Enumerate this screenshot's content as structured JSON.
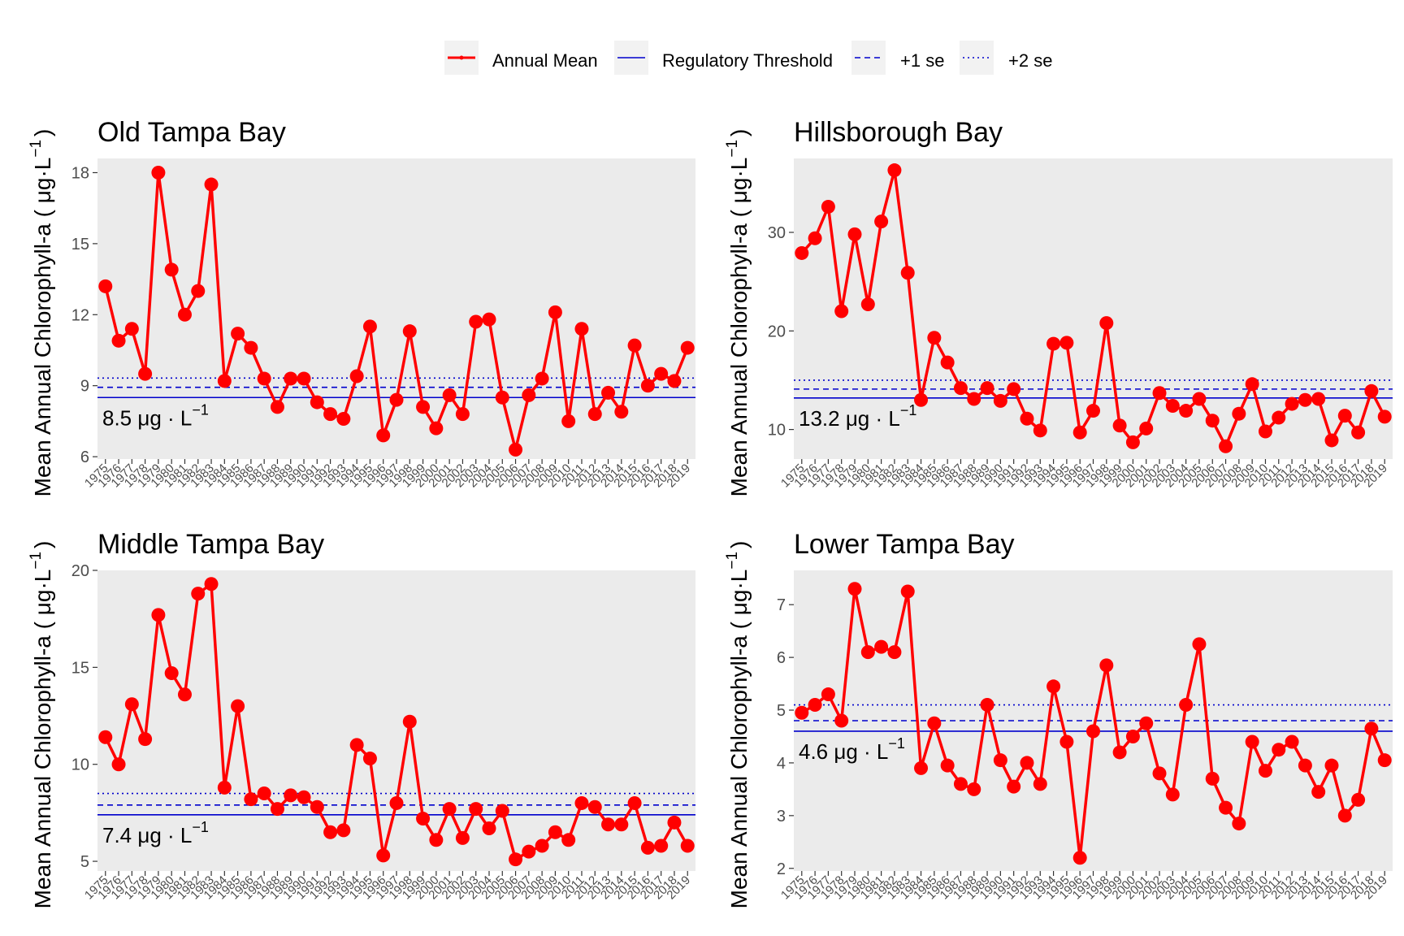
{
  "legend": {
    "annual_mean": "Annual Mean",
    "threshold": "Regulatory Threshold",
    "se1": "+1 se",
    "se2": "+2 se"
  },
  "colors": {
    "mean": "#ff0000",
    "threshold": "#0000cc",
    "panel_bg": "#ebebeb"
  },
  "chart_data": [
    {
      "type": "line",
      "title": "Old Tampa Bay",
      "ylabel": "Mean Annual Chlorophyll-a ( μg·L⁻¹ )",
      "ylabel_main": "Mean Annual Chlorophyll-a ( ",
      "ylabel_unit": "μg·L",
      "ylabel_exp": "−1",
      "ylabel_close": ")",
      "ylim": [
        5.9,
        18.6
      ],
      "yticks": [
        6,
        9,
        12,
        15,
        18
      ],
      "threshold": 8.5,
      "se1": 8.93,
      "se2": 9.32,
      "threshold_label": "8.5 μg · L",
      "threshold_label_exp": "−1",
      "x": [
        1975,
        1976,
        1977,
        1978,
        1979,
        1980,
        1981,
        1982,
        1983,
        1984,
        1985,
        1986,
        1987,
        1988,
        1989,
        1990,
        1991,
        1992,
        1993,
        1994,
        1995,
        1996,
        1997,
        1998,
        1999,
        2000,
        2001,
        2002,
        2003,
        2004,
        2005,
        2006,
        2007,
        2008,
        2009,
        2010,
        2011,
        2012,
        2013,
        2014,
        2015,
        2016,
        2017,
        2018,
        2019
      ],
      "values": [
        13.2,
        10.9,
        11.4,
        9.5,
        18.0,
        13.9,
        12.0,
        13.0,
        17.5,
        9.2,
        11.2,
        10.6,
        9.3,
        8.1,
        9.3,
        9.3,
        8.3,
        7.8,
        7.6,
        9.4,
        11.5,
        6.9,
        8.4,
        11.3,
        8.1,
        7.2,
        8.6,
        7.8,
        11.7,
        11.8,
        8.5,
        6.3,
        8.6,
        9.3,
        12.1,
        7.5,
        11.4,
        7.8,
        8.7,
        7.9,
        10.7,
        9.0,
        9.5,
        9.2,
        10.6
      ]
    },
    {
      "type": "line",
      "title": "Hillsborough Bay",
      "ylabel": "Mean Annual Chlorophyll-a ( μg·L⁻¹ )",
      "ylabel_main": "Mean Annual Chlorophyll-a ( ",
      "ylabel_unit": "μg·L",
      "ylabel_exp": "−1",
      "ylabel_close": ")",
      "ylim": [
        7.0,
        37.5
      ],
      "yticks": [
        10,
        20,
        30
      ],
      "threshold": 13.2,
      "se1": 14.1,
      "se2": 15.0,
      "threshold_label": "13.2 μg · L",
      "threshold_label_exp": "−1",
      "x": [
        1975,
        1976,
        1977,
        1978,
        1979,
        1980,
        1981,
        1982,
        1983,
        1984,
        1985,
        1986,
        1987,
        1988,
        1989,
        1990,
        1991,
        1992,
        1993,
        1994,
        1995,
        1996,
        1997,
        1998,
        1999,
        2000,
        2001,
        2002,
        2003,
        2004,
        2005,
        2006,
        2007,
        2008,
        2009,
        2010,
        2011,
        2012,
        2013,
        2014,
        2015,
        2016,
        2017,
        2018,
        2019
      ],
      "values": [
        27.9,
        29.4,
        32.6,
        22.0,
        29.8,
        22.7,
        31.1,
        36.3,
        25.9,
        13.0,
        19.3,
        16.8,
        14.2,
        13.1,
        14.2,
        12.9,
        14.1,
        11.1,
        9.9,
        18.7,
        18.8,
        9.7,
        11.9,
        20.8,
        10.4,
        8.7,
        10.1,
        13.7,
        12.4,
        11.9,
        13.1,
        10.9,
        8.3,
        11.6,
        14.6,
        9.8,
        11.2,
        12.6,
        13.0,
        13.1,
        8.9,
        11.4,
        9.7,
        13.9,
        11.3
      ]
    },
    {
      "type": "line",
      "title": "Middle Tampa Bay",
      "ylabel": "Mean Annual Chlorophyll-a ( μg·L⁻¹ )",
      "ylabel_main": "Mean Annual Chlorophyll-a ( ",
      "ylabel_unit": "μg·L",
      "ylabel_exp": "−1",
      "ylabel_close": ")",
      "ylim": [
        4.5,
        20.0
      ],
      "yticks": [
        5,
        10,
        15,
        20
      ],
      "threshold": 7.4,
      "se1": 7.9,
      "se2": 8.5,
      "threshold_label": "7.4 μg · L",
      "threshold_label_exp": "−1",
      "x": [
        1975,
        1976,
        1977,
        1978,
        1979,
        1980,
        1981,
        1982,
        1983,
        1984,
        1985,
        1986,
        1987,
        1988,
        1989,
        1990,
        1991,
        1992,
        1993,
        1994,
        1995,
        1996,
        1997,
        1998,
        1999,
        2000,
        2001,
        2002,
        2003,
        2004,
        2005,
        2006,
        2007,
        2008,
        2009,
        2010,
        2011,
        2012,
        2013,
        2014,
        2015,
        2016,
        2017,
        2018,
        2019
      ],
      "values": [
        11.4,
        10.0,
        13.1,
        11.3,
        17.7,
        14.7,
        13.6,
        18.8,
        19.3,
        8.8,
        13.0,
        8.2,
        8.5,
        7.7,
        8.4,
        8.3,
        7.8,
        6.5,
        6.6,
        11.0,
        10.3,
        5.3,
        8.0,
        12.2,
        7.2,
        6.1,
        7.7,
        6.2,
        7.7,
        6.7,
        7.6,
        5.1,
        5.5,
        5.8,
        6.5,
        6.1,
        8.0,
        7.8,
        6.9,
        6.9,
        8.0,
        5.7,
        5.8,
        7.0,
        5.8
      ]
    },
    {
      "type": "line",
      "title": "Lower Tampa Bay",
      "ylabel": "Mean Annual Chlorophyll-a ( μg·L⁻¹ )",
      "ylabel_main": "Mean Annual Chlorophyll-a ( ",
      "ylabel_unit": "μg·L",
      "ylabel_exp": "−1",
      "ylabel_close": ")",
      "ylim": [
        1.95,
        7.65
      ],
      "yticks": [
        2,
        3,
        4,
        5,
        6,
        7
      ],
      "threshold": 4.6,
      "se1": 4.8,
      "se2": 5.1,
      "threshold_label": "4.6 μg · L",
      "threshold_label_exp": "−1",
      "x": [
        1975,
        1976,
        1977,
        1978,
        1979,
        1980,
        1981,
        1982,
        1983,
        1984,
        1985,
        1986,
        1987,
        1988,
        1989,
        1990,
        1991,
        1992,
        1993,
        1994,
        1995,
        1996,
        1997,
        1998,
        1999,
        2000,
        2001,
        2002,
        2003,
        2004,
        2005,
        2006,
        2007,
        2008,
        2009,
        2010,
        2011,
        2012,
        2013,
        2014,
        2015,
        2016,
        2017,
        2018,
        2019
      ],
      "values": [
        4.95,
        5.1,
        5.3,
        4.8,
        7.3,
        6.1,
        6.2,
        6.1,
        7.25,
        3.9,
        4.75,
        3.95,
        3.6,
        3.5,
        5.1,
        4.05,
        3.55,
        4.0,
        3.6,
        5.45,
        4.4,
        2.2,
        4.6,
        5.85,
        4.2,
        4.5,
        4.75,
        3.8,
        3.4,
        5.1,
        6.25,
        3.7,
        3.15,
        2.85,
        4.4,
        3.85,
        4.25,
        4.4,
        3.95,
        3.45,
        3.95,
        3.0,
        3.3,
        4.65,
        4.05
      ]
    }
  ]
}
